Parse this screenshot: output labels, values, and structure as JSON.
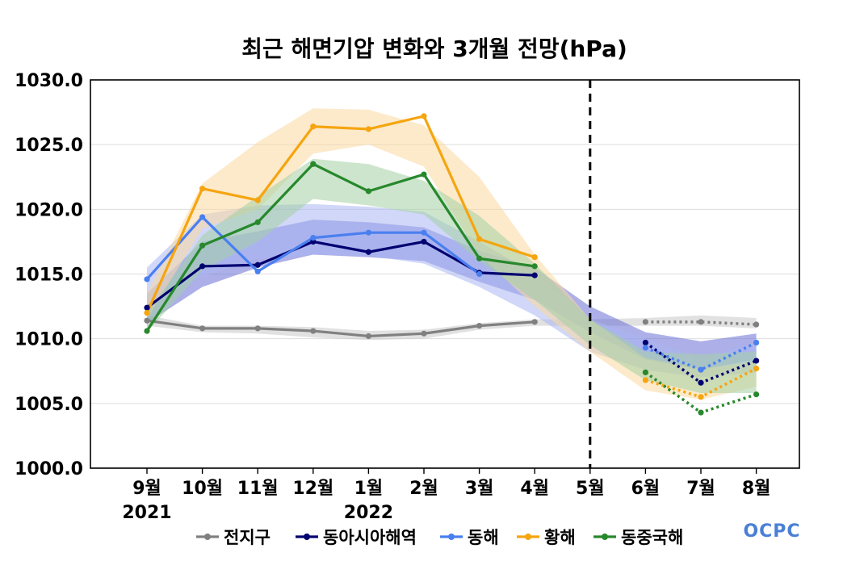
{
  "chart_data": {
    "type": "line",
    "title": "최근 해면기압 변화와 3개월 전망(hPa)",
    "xlabel": "",
    "ylabel": "",
    "ylim": [
      1000,
      1030
    ],
    "yticks": [
      "1000.0",
      "1005.0",
      "1010.0",
      "1015.0",
      "1020.0",
      "1025.0",
      "1030.0"
    ],
    "categories": [
      "9월",
      "10월",
      "11월",
      "12월",
      "1월",
      "2월",
      "3월",
      "4월",
      "5월",
      "6월",
      "7월",
      "8월"
    ],
    "year_labels": [
      {
        "index": 0,
        "label": "2021"
      },
      {
        "index": 4,
        "label": "2022"
      }
    ],
    "forecast_divider_index": 8,
    "series": [
      {
        "name": "전지구",
        "color": "#808080",
        "band_color": "#c8c8c8",
        "observed": [
          1011.4,
          1010.8,
          1010.8,
          1010.6,
          1010.2,
          1010.4,
          1011.0,
          1011.3
        ],
        "forecast": [
          1011.3,
          1011.3,
          1011.1
        ],
        "band_upper": [
          1011.8,
          1011.0,
          1011.0,
          1010.9,
          1010.6,
          1010.7,
          1011.2,
          1011.5,
          1011.5,
          1011.6,
          1011.8,
          1011.6
        ],
        "band_lower": [
          1011.0,
          1010.5,
          1010.4,
          1010.1,
          1009.9,
          1010.0,
          1010.7,
          1011.0,
          1011.0,
          1011.0,
          1011.0,
          1010.8
        ]
      },
      {
        "name": "동아시아해역",
        "color": "#000070",
        "band_color": "#6a70d6",
        "observed": [
          1012.4,
          1015.6,
          1015.7,
          1017.5,
          1016.7,
          1017.5,
          1015.1,
          1014.9
        ],
        "forecast": [
          1009.7,
          1006.6,
          1008.3
        ],
        "band_upper": [
          1013.5,
          1017.5,
          1018.3,
          1019.2,
          1019.0,
          1018.6,
          1016.8,
          1015.5,
          1012.5,
          1010.5,
          1009.8,
          1010.4
        ],
        "band_lower": [
          1011.2,
          1014.0,
          1015.5,
          1016.5,
          1016.3,
          1016.0,
          1014.4,
          1013.0,
          1010.5,
          1008.4,
          1007.6,
          1008.4
        ]
      },
      {
        "name": "동해",
        "color": "#4a7ff0",
        "band_color": "#a9b7f2",
        "observed": [
          1014.6,
          1019.4,
          1015.2,
          1017.8,
          1018.2,
          1018.2,
          1015.0,
          null
        ],
        "forecast": [
          1009.3,
          1007.6,
          1009.7
        ],
        "band_upper": [
          1015.5,
          1019.6,
          1020.3,
          1020.4,
          1020.2,
          1019.8,
          1017.5,
          1015.0,
          1011.5,
          1010.0,
          1008.4,
          1009.7
        ],
        "band_lower": [
          1013.0,
          1014.8,
          1016.2,
          1016.5,
          1016.4,
          1015.8,
          1014.0,
          1011.8,
          1009.0,
          1007.6,
          1007.0,
          1007.4
        ]
      },
      {
        "name": "황해",
        "color": "#f5a50f",
        "band_color": "#fad8a0",
        "observed": [
          1012.0,
          1021.6,
          1020.7,
          1026.4,
          1026.2,
          1027.2,
          1017.7,
          1016.3
        ],
        "forecast": [
          1006.8,
          1005.5,
          1007.7
        ],
        "band_upper": [
          1013.5,
          1022.0,
          1025.2,
          1027.8,
          1027.7,
          1026.5,
          1022.5,
          1016.5,
          1011.5,
          1008.5,
          1007.7,
          1008.2
        ],
        "band_lower": [
          1011.5,
          1018.5,
          1020.0,
          1024.3,
          1025.0,
          1023.3,
          1016.5,
          1012.5,
          1009.0,
          1006.0,
          1005.3,
          1006.3
        ]
      },
      {
        "name": "동중국해",
        "color": "#27882c",
        "band_color": "#a4cfa4",
        "observed": [
          1010.6,
          1017.2,
          1019.0,
          1023.5,
          1021.4,
          1022.7,
          1016.2,
          1015.6
        ],
        "forecast": [
          1007.4,
          1004.3,
          1005.7
        ],
        "band_upper": [
          1012.0,
          1018.0,
          1021.0,
          1023.9,
          1023.5,
          1022.2,
          1019.5,
          1015.8,
          1011.5,
          1009.0,
          1008.8,
          1009.0
        ],
        "band_lower": [
          1010.5,
          1015.3,
          1017.5,
          1020.8,
          1020.3,
          1019.6,
          1016.0,
          1013.0,
          1009.5,
          1006.8,
          1005.8,
          1005.8
        ]
      }
    ]
  },
  "legend": {
    "items": [
      "전지구",
      "동아시아해역",
      "동해",
      "황해",
      "동중국해"
    ]
  },
  "logo": {
    "text": "OCPC",
    "color": "#4a7fd6"
  }
}
